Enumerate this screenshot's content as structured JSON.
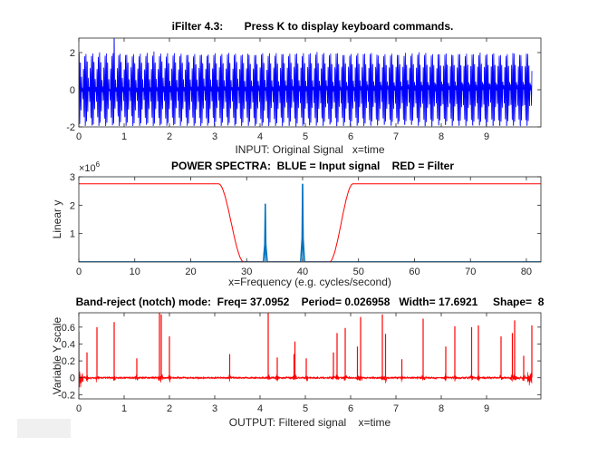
{
  "window_control": {
    "label": ""
  },
  "chart_data": [
    {
      "type": "line",
      "title": "iFilter 4.3:       Press K to display keyboard commands.",
      "xlabel": "INPUT: Original Signal   x=time",
      "ylabel": "",
      "xlim": [
        0,
        10.2
      ],
      "ylim": [
        -2,
        2.78
      ],
      "xticks": [
        0,
        1,
        2,
        3,
        4,
        5,
        6,
        7,
        8,
        9
      ],
      "yticks": [
        -2,
        0,
        2
      ],
      "series": [
        {
          "name": "Input signal",
          "color": "#0000ff",
          "components": [
            {
              "freq": 33.33,
              "amp": 1.0
            },
            {
              "freq": 40,
              "amp": 1.0
            }
          ],
          "spikes": [
            {
              "x": 0.78,
              "y": 2.75
            }
          ],
          "duration": 10
        }
      ]
    },
    {
      "type": "line",
      "title": "POWER SPECTRA:  BLUE = Input signal    RED = Filter",
      "xlabel": "x=Frequency (e.g. cycles/second)",
      "ylabel": "Linear y",
      "exponent": "×10",
      "exponent_power": "6",
      "xlim": [
        0,
        82.6
      ],
      "ylim": [
        0,
        3
      ],
      "xticks": [
        0,
        10,
        20,
        30,
        40,
        50,
        60,
        70,
        80
      ],
      "yticks": [
        1,
        2,
        3
      ],
      "series": [
        {
          "name": "Filter",
          "color": "#ff0000",
          "level": 2.75,
          "reject_low": [
            25,
            29.5
          ],
          "reject_high": [
            44.8,
            49
          ]
        },
        {
          "name": "Input signal",
          "color": "#0072bd",
          "peaks": [
            {
              "x": 33.33,
              "y": 2.05
            },
            {
              "x": 40,
              "y": 2.75
            }
          ]
        }
      ]
    },
    {
      "type": "line",
      "title": "Band-reject (notch) mode:  Freq= 37.0952    Period= 0.026958   Width= 17.6921     Shape=  8",
      "xlabel": "OUTPUT: Filtered signal    x=time",
      "ylabel": "Variable Y scale",
      "xlim": [
        0,
        10.2
      ],
      "ylim": [
        -0.25,
        0.77
      ],
      "xticks": [
        0,
        1,
        2,
        3,
        4,
        5,
        6,
        7,
        8,
        9
      ],
      "yticks": [
        -0.2,
        0,
        0.2,
        0.4,
        0.6
      ],
      "series": [
        {
          "name": "Filtered signal",
          "color": "#ff0000",
          "duration": 10,
          "spikes": [
            [
              0,
              0.55
            ],
            [
              0.18,
              0.3
            ],
            [
              0.4,
              0.6
            ],
            [
              0.78,
              0.66
            ],
            [
              1.28,
              0.23
            ],
            [
              1.78,
              0.77
            ],
            [
              1.82,
              0.75
            ],
            [
              2.0,
              0.49
            ],
            [
              3.33,
              0.28
            ],
            [
              4.18,
              0.77
            ],
            [
              4.38,
              0.24
            ],
            [
              4.75,
              0.28
            ],
            [
              4.77,
              0.43
            ],
            [
              5.02,
              0.23
            ],
            [
              5.62,
              0.3
            ],
            [
              5.7,
              0.53
            ],
            [
              5.88,
              0.59
            ],
            [
              6.15,
              0.37
            ],
            [
              6.22,
              0.72
            ],
            [
              6.7,
              0.75
            ],
            [
              6.77,
              0.52
            ],
            [
              7.13,
              0.22
            ],
            [
              7.6,
              0.7
            ],
            [
              8.1,
              0.37
            ],
            [
              8.3,
              0.61
            ],
            [
              8.67,
              0.6
            ],
            [
              8.82,
              0.62
            ],
            [
              9.32,
              0.49
            ],
            [
              9.57,
              0.53
            ],
            [
              9.62,
              0.68
            ],
            [
              9.82,
              0.26
            ],
            [
              10.0,
              0.62
            ]
          ]
        }
      ]
    }
  ]
}
